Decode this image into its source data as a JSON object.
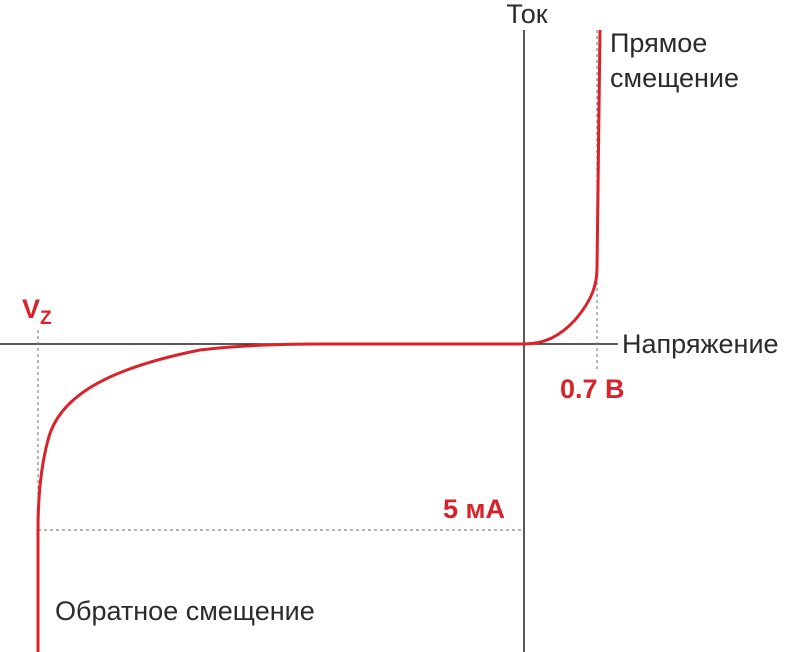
{
  "axes": {
    "y_label": "Ток",
    "x_label": "Напряжение"
  },
  "forward": {
    "line1": "Прямое",
    "line2": "смещение",
    "voltage": "0.7 В"
  },
  "reverse": {
    "label": "Обратное смещение",
    "current": "5 мА",
    "vz": {
      "main": "V",
      "sub": "Z"
    }
  }
}
